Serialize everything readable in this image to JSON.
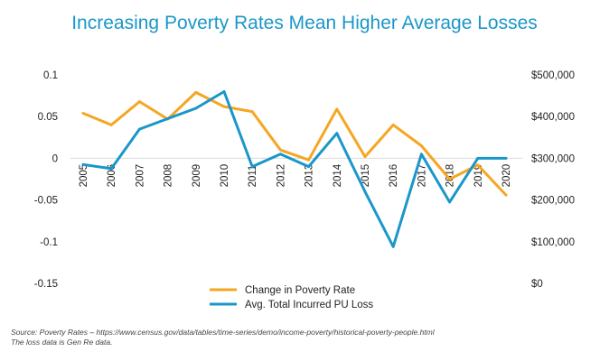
{
  "chart_data": {
    "type": "line",
    "title": "Increasing Poverty Rates Mean Higher Average Losses",
    "categories": [
      "2005",
      "2006",
      "2007",
      "2008",
      "2009",
      "2010",
      "2011",
      "2012",
      "2013",
      "2014",
      "2015",
      "2016",
      "2017",
      "2018",
      "2019",
      "2020"
    ],
    "y_left": {
      "ylim": [
        -0.15,
        0.1
      ],
      "ticks": [
        0.1,
        0.05,
        0,
        -0.05,
        -0.1,
        -0.15
      ],
      "tick_labels": [
        "0.1",
        "0.05",
        "0",
        "-0.05",
        "-0.1",
        "-0.15"
      ]
    },
    "y_right": {
      "ylim": [
        0,
        500000
      ],
      "ticks": [
        500000,
        400000,
        300000,
        200000,
        100000,
        0
      ],
      "tick_labels": [
        "$500,000",
        "$400,000",
        "$300,000",
        "$200,000",
        "$100,000",
        "$0"
      ]
    },
    "series": [
      {
        "name": "Change in Poverty Rate",
        "axis": "left",
        "color": "#f5a623",
        "values": [
          0.054,
          0.04,
          0.068,
          0.047,
          0.079,
          0.062,
          0.056,
          0.01,
          -0.002,
          0.059,
          0.002,
          0.04,
          0.015,
          -0.025,
          -0.008,
          -0.044
        ]
      },
      {
        "name": "Avg. Total Incurred PU Loss",
        "axis": "right",
        "color": "#1a97c9",
        "values": [
          285000,
          275000,
          370000,
          395000,
          420000,
          460000,
          280000,
          310000,
          280000,
          360000,
          220000,
          88000,
          310000,
          195000,
          300000,
          300000
        ]
      }
    ],
    "legend": [
      "Change in Poverty Rate",
      "Avg. Total Incurred PU Loss"
    ],
    "legend_position": "bottom-center"
  },
  "source_line1": "Source: Poverty Rates – https://www.census.gov/data/tables/time-series/demo/income-poverty/historical-poverty-people.html",
  "source_line2": "The loss data is Gen Re data."
}
